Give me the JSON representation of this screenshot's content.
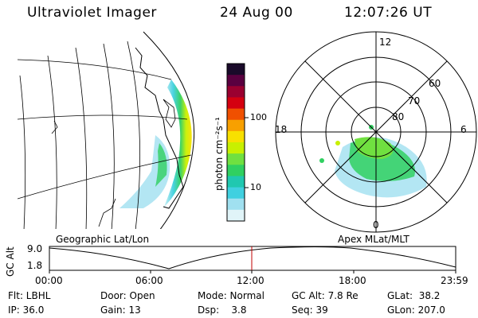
{
  "header": {
    "title": "Ultraviolet Imager",
    "date": "24 Aug 00",
    "time": "12:07:26 UT"
  },
  "colorbar": {
    "unit_label": "photon cm⁻²s⁻¹",
    "ticks": [
      "100",
      "10"
    ],
    "colors": [
      "#1a0a2a",
      "#5a0040",
      "#9a0030",
      "#d40010",
      "#f05000",
      "#f8a000",
      "#f8e000",
      "#c8f000",
      "#70e040",
      "#30d060",
      "#20c8b0",
      "#40d0e0",
      "#a0e0f0",
      "#e0f4f8"
    ]
  },
  "geo_panel": {
    "label": "Geographic Lat/Lon"
  },
  "polar_panel": {
    "label": "Apex MLat/MLT",
    "hour_labels": [
      "12",
      "18",
      "6",
      "0"
    ],
    "lat_labels": [
      "60",
      "70",
      "80"
    ]
  },
  "timeline": {
    "axis_label": "GC Alt",
    "y_ticks": [
      "9.0",
      "1.8"
    ],
    "x_ticks": [
      "00:00",
      "06:00",
      "12:00",
      "18:00",
      "23:59"
    ],
    "marker_color": "#c00000"
  },
  "info": {
    "flt": "Flt: LBHL",
    "ip": "IP: 36.0",
    "door": "Door: Open",
    "gain": "Gain: 13",
    "mode": "Mode: Normal",
    "dsp": "Dsp:    3.8",
    "gc_alt": "GC Alt: 7.8 Re",
    "seq": "Seq: 39",
    "glat": "GLat:  38.2",
    "glon": "GLon: 207.0"
  }
}
